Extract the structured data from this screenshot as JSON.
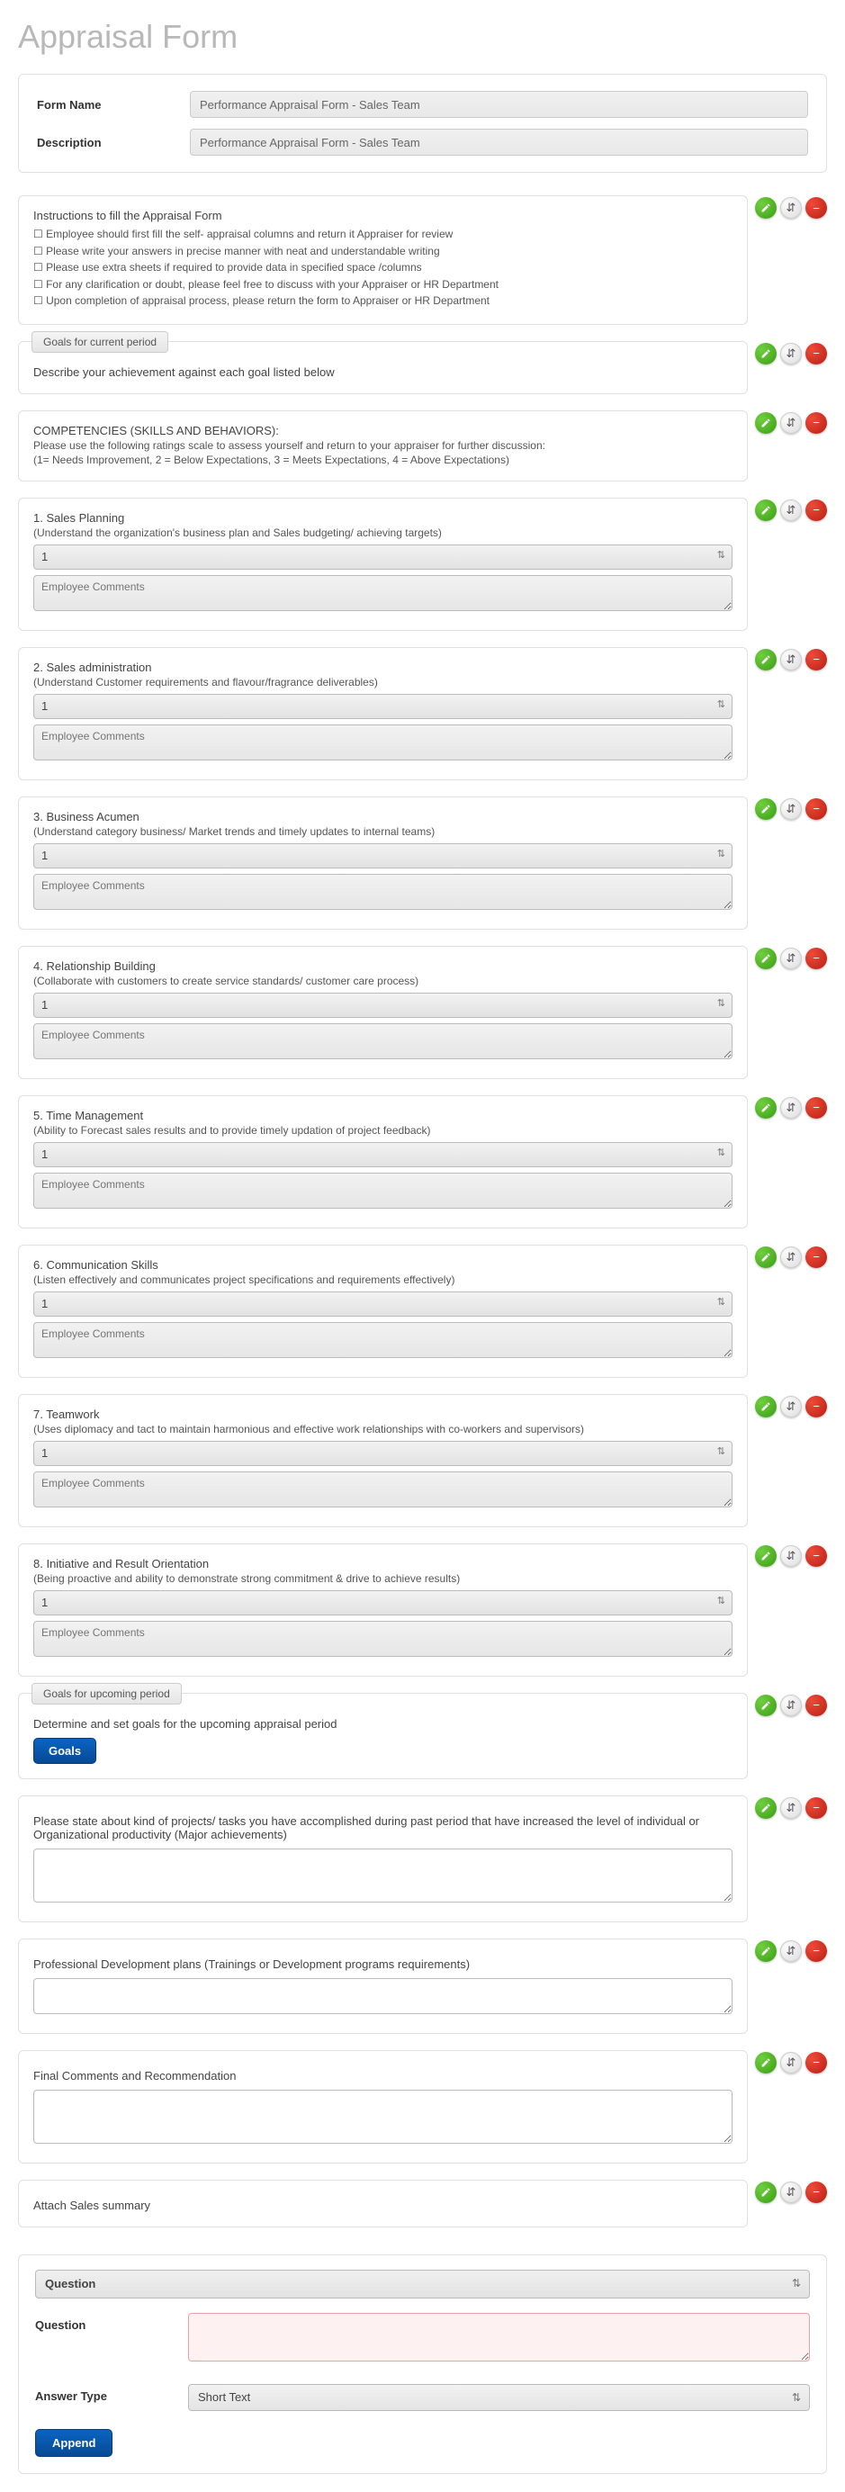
{
  "page_title": "Appraisal Form",
  "header": {
    "form_name_label": "Form Name",
    "form_name_value": "Performance Appraisal Form - Sales Team",
    "description_label": "Description",
    "description_value": "Performance Appraisal Form - Sales Team"
  },
  "instructions": {
    "heading": "Instructions to fill the Appraisal Form",
    "lines": [
      "Employee should first fill the self- appraisal columns and return it Appraiser for review",
      "Please write your answers in precise manner with neat and understandable writing",
      "Please use extra sheets if required to provide data in specified space /columns",
      "For any clarification or doubt, please feel free to discuss with your Appraiser or HR Department",
      "Upon completion of appraisal process, please return the form to Appraiser or HR Department"
    ]
  },
  "goals_current": {
    "tab": "Goals for current period",
    "desc": "Describe your achievement against each goal listed below"
  },
  "competencies": {
    "heading": "COMPETENCIES (SKILLS AND BEHAVIORS):",
    "sub": "Please use the following ratings scale to assess yourself and return to your appraiser for further discussion:",
    "scale": "(1= Needs Improvement, 2 = Below Expectations, 3 = Meets Expectations, 4 = Above Expectations)"
  },
  "questions": [
    {
      "title": "1. Sales Planning",
      "sub": "(Understand the organization's business plan and Sales budgeting/ achieving targets)",
      "select": "1",
      "placeholder": "Employee Comments"
    },
    {
      "title": "2. Sales administration",
      "sub": "(Understand Customer requirements and flavour/fragrance deliverables)",
      "select": "1",
      "placeholder": "Employee Comments"
    },
    {
      "title": "3. Business Acumen",
      "sub": "(Understand category business/ Market trends and timely updates to internal teams)",
      "select": "1",
      "placeholder": "Employee Comments"
    },
    {
      "title": "4. Relationship Building",
      "sub": "(Collaborate with customers to create service standards/ customer care process)",
      "select": "1",
      "placeholder": "Employee Comments"
    },
    {
      "title": "5. Time Management",
      "sub": "(Ability to Forecast sales results and to provide timely updation of project feedback)",
      "select": "1",
      "placeholder": "Employee Comments"
    },
    {
      "title": "6. Communication Skills",
      "sub": "(Listen effectively and communicates project specifications and requirements effectively)",
      "select": "1",
      "placeholder": "Employee Comments"
    },
    {
      "title": "7. Teamwork",
      "sub": "(Uses diplomacy and tact to maintain harmonious and effective work relationships with co-workers and supervisors)",
      "select": "1",
      "placeholder": "Employee Comments"
    },
    {
      "title": "8. Initiative and Result Orientation",
      "sub": "(Being proactive and ability to demonstrate strong commitment & drive to achieve results)",
      "select": "1",
      "placeholder": "Employee Comments"
    }
  ],
  "goals_upcoming": {
    "tab": "Goals for upcoming period",
    "desc": "Determine and set goals for the upcoming appraisal period",
    "button": "Goals"
  },
  "open_sections": [
    {
      "text": "Please state about kind of projects/ tasks you have accomplished during past period that have increased the level of individual or Organizational productivity (Major achievements)",
      "big": true
    },
    {
      "text": "Professional Development plans (Trainings or Development programs requirements)",
      "big": false
    },
    {
      "text": "Final Comments and Recommendation",
      "big": true
    },
    {
      "text": "Attach Sales summary",
      "big": null
    }
  ],
  "bottom": {
    "type_select": "Question",
    "question_label": "Question",
    "question_value": "",
    "answer_type_label": "Answer Type",
    "answer_type_value": "Short Text",
    "append_label": "Append"
  },
  "colors": {
    "edit_btn": "#4caf1b",
    "move_btn": "#e8e8e8",
    "remove_btn": "#d32617",
    "primary_btn": "#0a5bb0"
  }
}
